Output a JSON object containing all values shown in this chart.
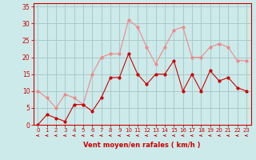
{
  "x": [
    0,
    1,
    2,
    3,
    4,
    5,
    6,
    7,
    8,
    9,
    10,
    11,
    12,
    13,
    14,
    15,
    16,
    17,
    18,
    19,
    20,
    21,
    22,
    23
  ],
  "vent_moyen": [
    0,
    3,
    2,
    1,
    6,
    6,
    4,
    8,
    14,
    14,
    21,
    15,
    12,
    15,
    15,
    19,
    10,
    15,
    10,
    16,
    13,
    14,
    11,
    10
  ],
  "vent_rafales": [
    10,
    8,
    5,
    9,
    8,
    6,
    15,
    20,
    21,
    21,
    31,
    29,
    23,
    18,
    23,
    28,
    29,
    20,
    20,
    23,
    24,
    23,
    19,
    19
  ],
  "background_color": "#cceaea",
  "grid_color": "#aac8c8",
  "line_color_moyen": "#cc0000",
  "line_color_rafales": "#ee8888",
  "xlabel": "Vent moyen/en rafales ( km/h )",
  "ylim": [
    0,
    36
  ],
  "yticks": [
    0,
    5,
    10,
    15,
    20,
    25,
    30,
    35
  ],
  "xticks": [
    0,
    1,
    2,
    3,
    4,
    5,
    6,
    7,
    8,
    9,
    10,
    11,
    12,
    13,
    14,
    15,
    16,
    17,
    18,
    19,
    20,
    21,
    22,
    23
  ],
  "axis_color": "#cc0000"
}
